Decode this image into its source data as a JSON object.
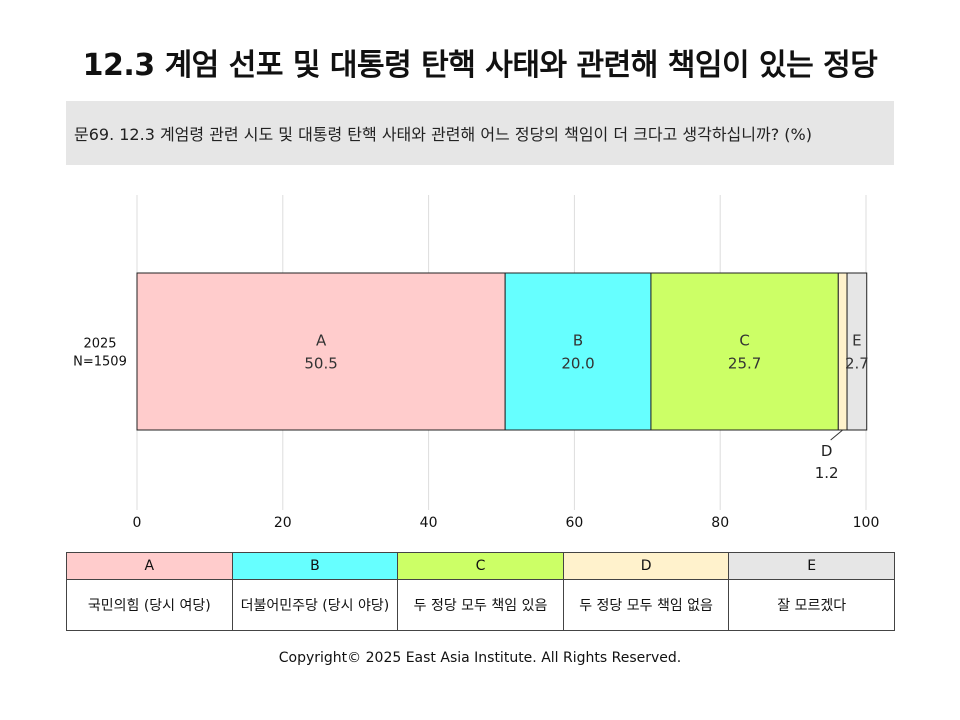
{
  "title": "12.3 계엄 선포 및 대통령 탄핵 사태와 관련해 책임이 있는 정당",
  "question": "문69. 12.3 계엄령 관련 시도 및 대통령 탄핵 사태와 관련해 어느 정당의 책임이 더 크다고 생각하십니까? (%)",
  "chart_data": {
    "type": "bar",
    "orientation": "horizontal-stacked",
    "categories": [
      "2025\nN=1509"
    ],
    "row_label": [
      "2025",
      "N=1509"
    ],
    "series": [
      {
        "name": "A",
        "values": [
          50.5
        ],
        "color": "#ffcccc"
      },
      {
        "name": "B",
        "values": [
          20.0
        ],
        "color": "#66ffff"
      },
      {
        "name": "C",
        "values": [
          25.7
        ],
        "color": "#ccff66"
      },
      {
        "name": "D",
        "values": [
          1.2
        ],
        "color": "#fff2cc"
      },
      {
        "name": "E",
        "values": [
          2.7
        ],
        "color": "#e6e6e6"
      }
    ],
    "xlim": [
      0,
      100
    ],
    "xticks": [
      0,
      20,
      40,
      60,
      80,
      100
    ],
    "grid": true
  },
  "legend": {
    "keys": [
      "A",
      "B",
      "C",
      "D",
      "E"
    ],
    "names": [
      "국민의힘 (당시 여당)",
      "더불어민주당 (당시 야당)",
      "두 정당 모두 책임 있음",
      "두 정당 모두 책임 없음",
      "잘 모르겠다"
    ],
    "colors": [
      "#ffcccc",
      "#66ffff",
      "#ccff66",
      "#fff2cc",
      "#e6e6e6"
    ]
  },
  "copyright": "Copyright© 2025 East Asia Institute. All Rights Reserved."
}
